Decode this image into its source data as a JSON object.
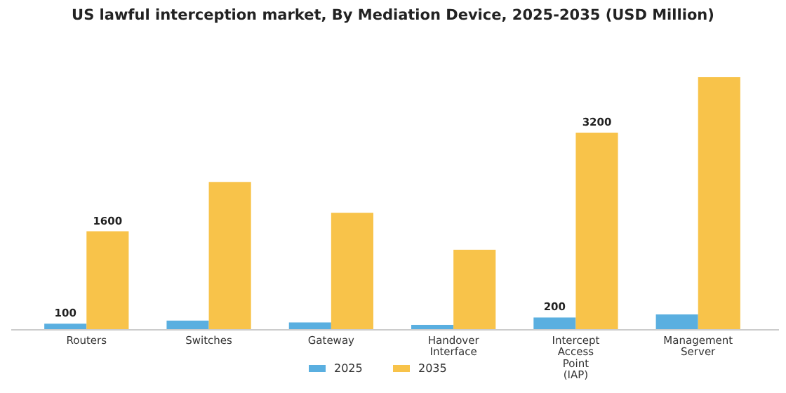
{
  "chart_data": {
    "type": "bar",
    "title": "US lawful interception market, By Mediation Device, 2025-2035 (USD Million)",
    "categories": [
      "Routers",
      "Switches",
      "Gateway",
      "Handover Interface",
      "Intercept Access Point (IAP)",
      "Management Server"
    ],
    "series": [
      {
        "name": "2025",
        "color": "#5aafe0",
        "values": [
          100,
          150,
          120,
          80,
          200,
          250
        ],
        "value_labels": [
          "100",
          null,
          null,
          null,
          "200",
          null
        ]
      },
      {
        "name": "2035",
        "color": "#f8c34a",
        "values": [
          1600,
          2400,
          1900,
          1300,
          3200,
          4100
        ],
        "value_labels": [
          "1600",
          null,
          null,
          null,
          "3200",
          null
        ]
      }
    ],
    "legend": "bottom"
  }
}
